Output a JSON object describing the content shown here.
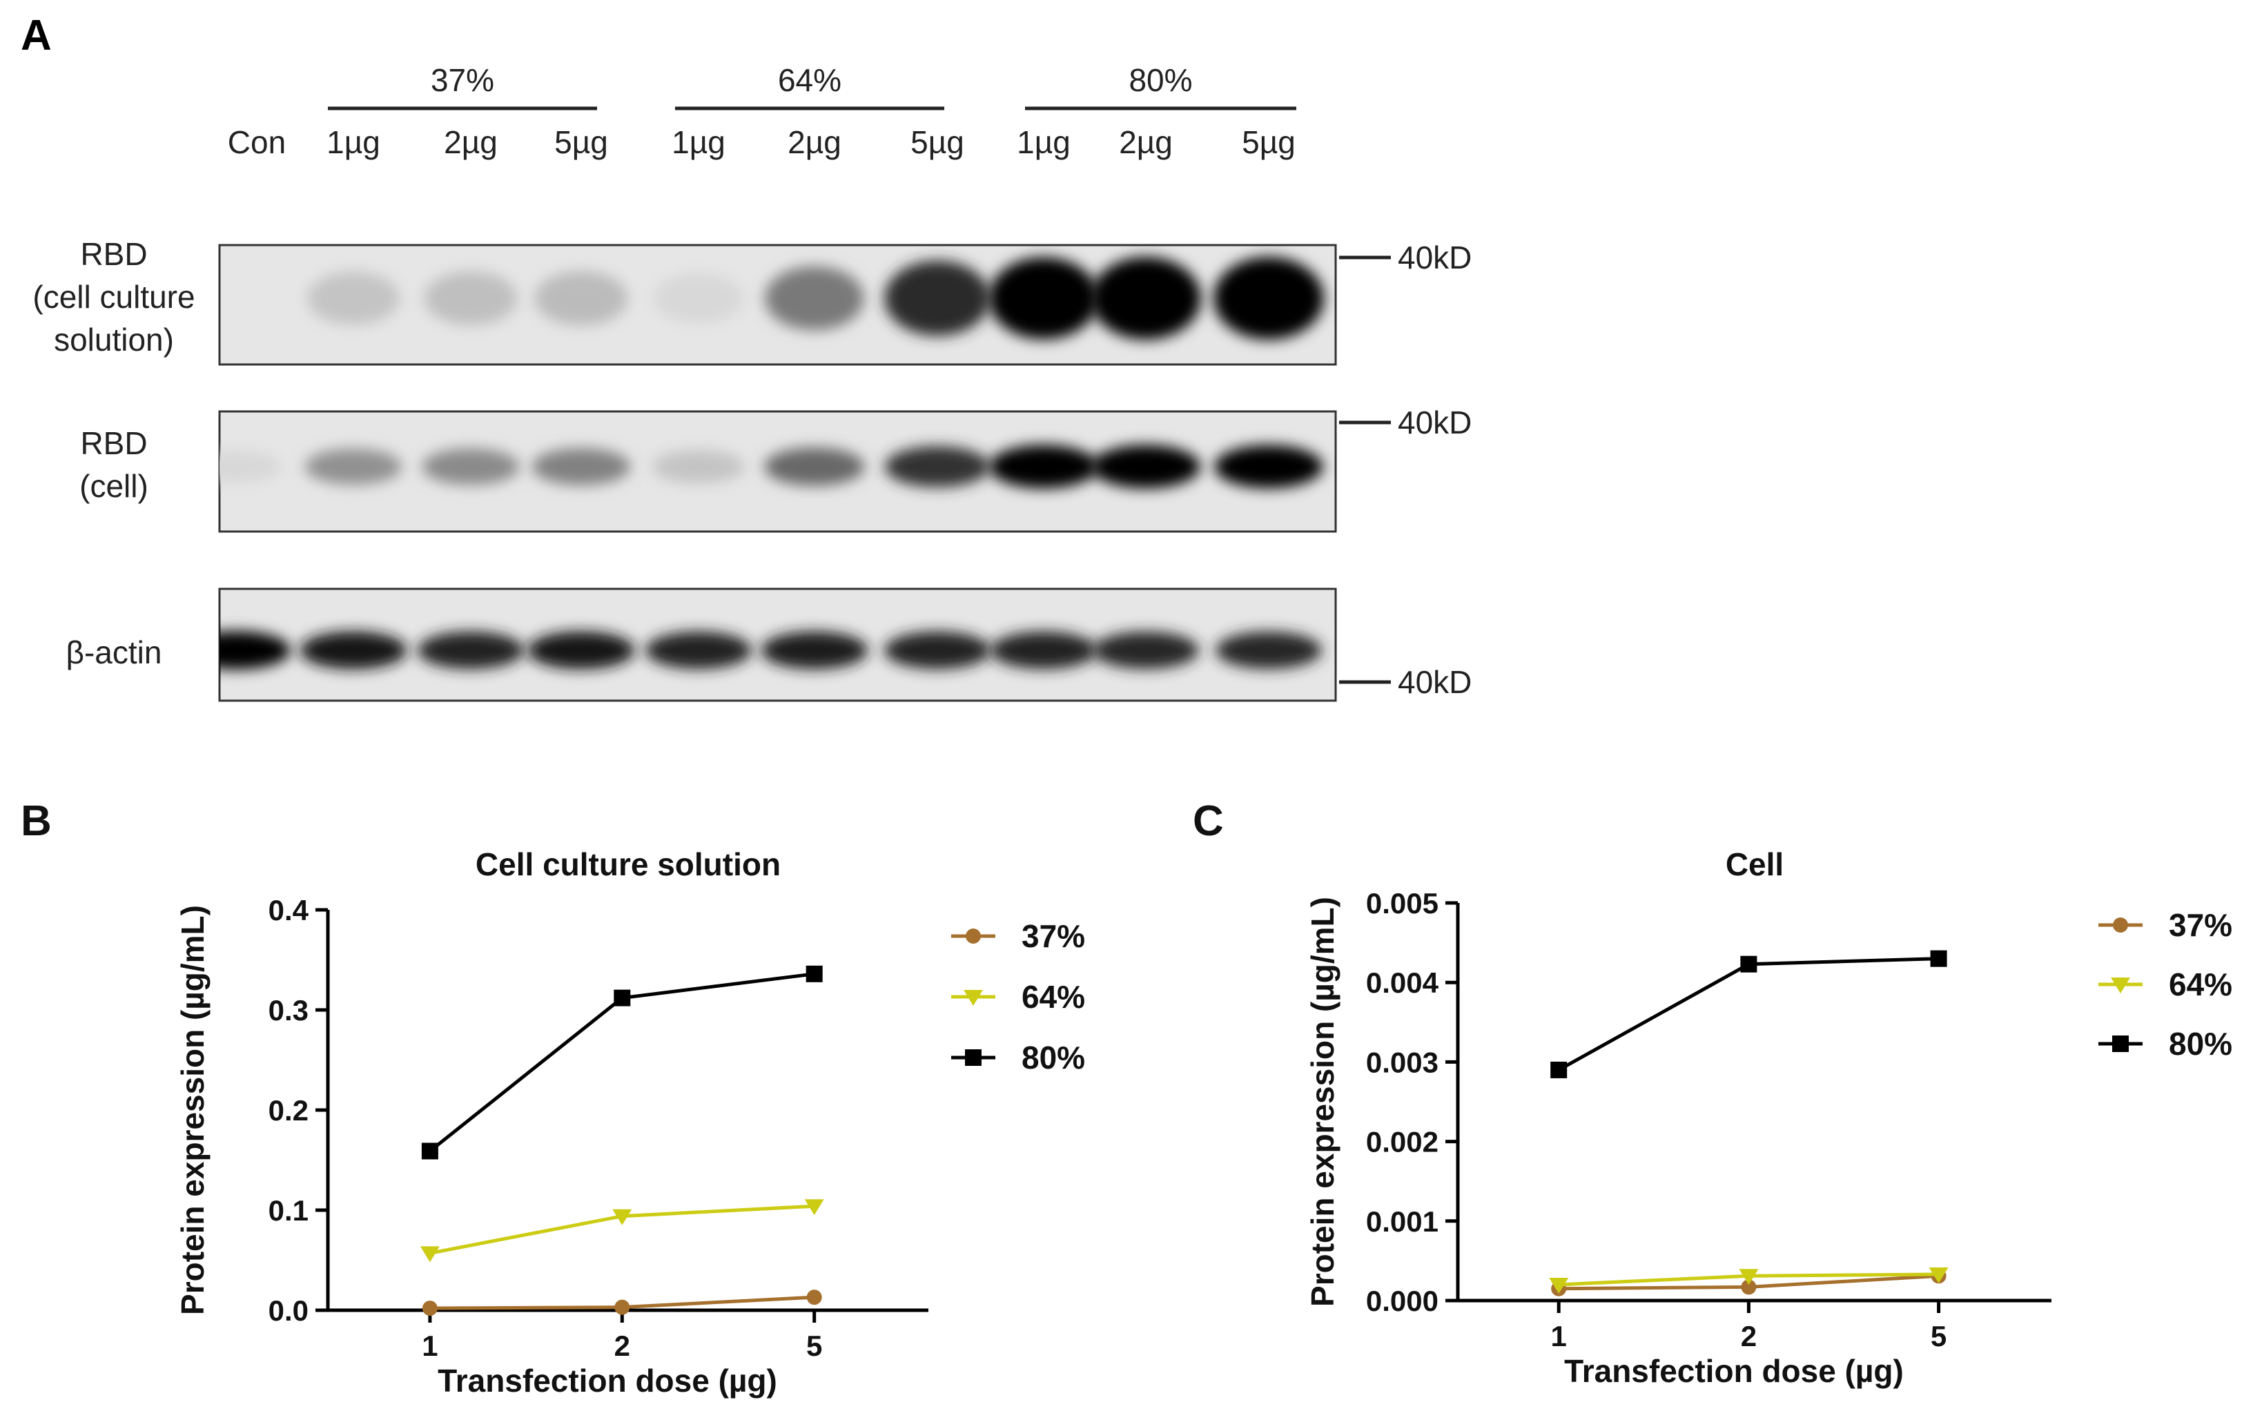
{
  "colors": {
    "pct37": "#a5702e",
    "pct64": "#cccc14",
    "pct80": "#000000",
    "blot_bg": "#e6e6e6",
    "blot_frame": "#333333"
  },
  "panel_a": {
    "letter": "A",
    "groups": [
      "37%",
      "64%",
      "80%"
    ],
    "lanes": [
      "Con",
      "1µg",
      "2µg",
      "5µg",
      "1µg",
      "2µg",
      "5µg",
      "1µg",
      "2µg",
      "5µg"
    ],
    "blots": [
      {
        "label_lines": [
          "RBD",
          "(cell culture",
          "solution)"
        ],
        "marker": "40kD",
        "intensities": [
          0.0,
          0.14,
          0.16,
          0.18,
          0.06,
          0.45,
          0.78,
          0.98,
          1.0,
          1.0
        ]
      },
      {
        "label_lines": [
          "RBD",
          "(cell)"
        ],
        "marker": "40kD",
        "intensities": [
          0.06,
          0.35,
          0.38,
          0.42,
          0.14,
          0.52,
          0.75,
          0.95,
          0.95,
          0.93
        ]
      },
      {
        "label_lines": [
          "β-actin"
        ],
        "marker": "40kD",
        "intensities": [
          0.95,
          0.85,
          0.82,
          0.86,
          0.82,
          0.84,
          0.82,
          0.82,
          0.8,
          0.8
        ]
      }
    ]
  },
  "chart_data": [
    {
      "type": "line",
      "panel": "B",
      "title": "Cell culture solution",
      "xlabel": "Transfection dose (µg)",
      "ylabel": "Protein expression (µg/mL)",
      "categories": [
        "1",
        "2",
        "5"
      ],
      "ylim": [
        0,
        0.4
      ],
      "yticks": [
        "0.0",
        "0.1",
        "0.2",
        "0.3",
        "0.4"
      ],
      "legend_position": "right",
      "series": [
        {
          "name": "37%",
          "values": [
            0.002,
            0.003,
            0.013
          ],
          "marker": "circle",
          "color": "#a5702e"
        },
        {
          "name": "64%",
          "values": [
            0.057,
            0.094,
            0.104
          ],
          "marker": "triangle-down",
          "color": "#cccc14"
        },
        {
          "name": "80%",
          "values": [
            0.159,
            0.312,
            0.336
          ],
          "marker": "square",
          "color": "#000000"
        }
      ]
    },
    {
      "type": "line",
      "panel": "C",
      "title": "Cell",
      "xlabel": "Transfection dose (µg)",
      "ylabel": "Protein expression (µg/mL)",
      "categories": [
        "1",
        "2",
        "5"
      ],
      "ylim": [
        0,
        0.005
      ],
      "yticks": [
        "0.000",
        "0.001",
        "0.002",
        "0.003",
        "0.004",
        "0.005"
      ],
      "legend_position": "right",
      "series": [
        {
          "name": "37%",
          "values": [
            0.00015,
            0.00017,
            0.00031
          ],
          "marker": "circle",
          "color": "#a5702e"
        },
        {
          "name": "64%",
          "values": [
            0.0002,
            0.00031,
            0.00033
          ],
          "marker": "triangle-down",
          "color": "#cccc14"
        },
        {
          "name": "80%",
          "values": [
            0.0029,
            0.00423,
            0.0043
          ],
          "marker": "square",
          "color": "#000000"
        }
      ]
    }
  ]
}
